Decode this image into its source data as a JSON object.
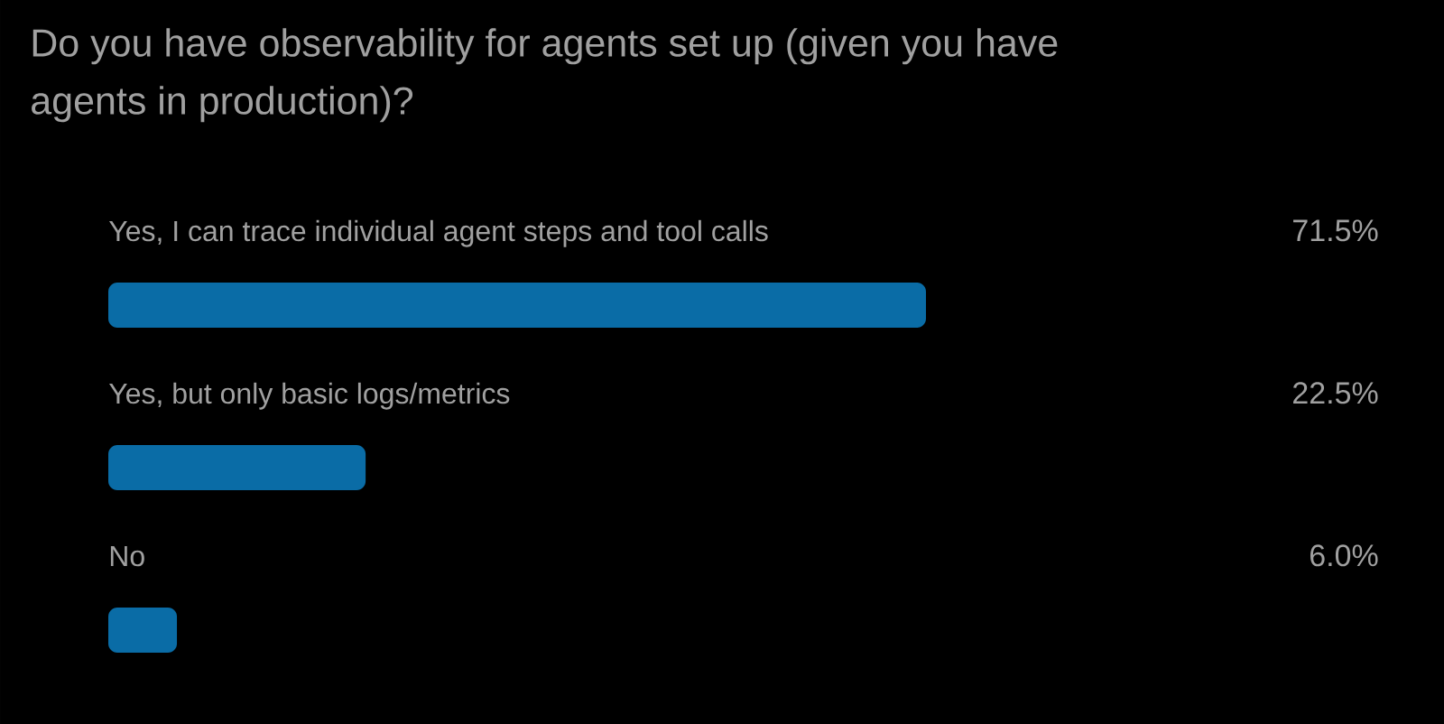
{
  "chart_data": {
    "type": "bar",
    "orientation": "horizontal",
    "title": "Do you have observability for agents set up (given you have agents in production)?",
    "categories": [
      "Yes, I can trace individual agent steps and tool calls",
      "Yes, but only basic logs/metrics",
      "No"
    ],
    "values": [
      71.5,
      22.5,
      6.0
    ],
    "value_labels": [
      "71.5%",
      "22.5%",
      "6.0%"
    ],
    "color": "#0a6ca6",
    "tick_labels": "y"
  }
}
